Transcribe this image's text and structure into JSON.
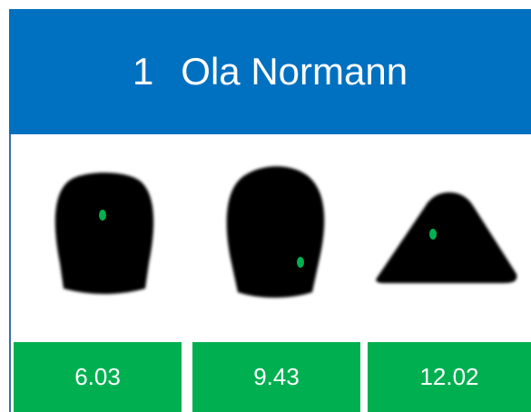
{
  "header": {
    "number": "1",
    "name": "Ola Normann"
  },
  "scores": [
    "6.03",
    "9.43",
    "12.02"
  ]
}
